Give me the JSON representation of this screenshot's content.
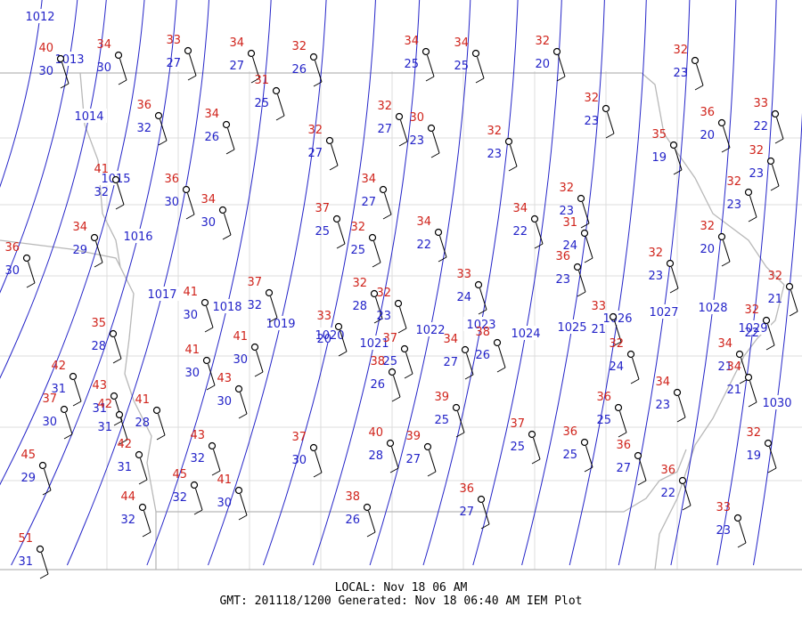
{
  "stations": [
    {
      "temperature": 40,
      "dewpoint": 30
    },
    {
      "temperature": 34,
      "dewpoint": 30
    },
    {
      "temperature": 33,
      "dewpoint": 27
    },
    {
      "temperature": 34,
      "dewpoint": 27
    },
    {
      "temperature": 32,
      "dewpoint": 26
    },
    {
      "temperature": 34,
      "dewpoint": 25
    },
    {
      "temperature": 34,
      "dewpoint": 25
    },
    {
      "temperature": 32,
      "dewpoint": 20
    },
    {
      "temperature": 32,
      "dewpoint": 23
    },
    {
      "temperature": 31,
      "dewpoint": 25
    },
    {
      "temperature": 36,
      "dewpoint": 32
    },
    {
      "temperature": 34,
      "dewpoint": 26
    },
    {
      "temperature": 32,
      "dewpoint": 27
    },
    {
      "temperature": 30,
      "dewpoint": 23
    },
    {
      "temperature": 32,
      "dewpoint": 27
    },
    {
      "temperature": 32,
      "dewpoint": 23
    },
    {
      "temperature": 32,
      "dewpoint": 23
    },
    {
      "temperature": 35,
      "dewpoint": 19
    },
    {
      "temperature": 36,
      "dewpoint": 20
    },
    {
      "temperature": 33,
      "dewpoint": 22
    },
    {
      "temperature": 32,
      "dewpoint": 23
    },
    {
      "temperature": 41,
      "dewpoint": 32
    },
    {
      "temperature": 36,
      "dewpoint": 30
    },
    {
      "temperature": 34,
      "dewpoint": 30
    },
    {
      "temperature": 34,
      "dewpoint": 27
    },
    {
      "temperature": 37,
      "dewpoint": 25
    },
    {
      "temperature": 32,
      "dewpoint": 25
    },
    {
      "temperature": 34,
      "dewpoint": 22
    },
    {
      "temperature": 34,
      "dewpoint": 22
    },
    {
      "temperature": 32,
      "dewpoint": 23
    },
    {
      "temperature": 31,
      "dewpoint": 24
    },
    {
      "temperature": 32,
      "dewpoint": 23
    },
    {
      "temperature": 34,
      "dewpoint": 29
    },
    {
      "temperature": 36,
      "dewpoint": 30
    },
    {
      "temperature": 36,
      "dewpoint": 23
    },
    {
      "temperature": 32,
      "dewpoint": 23
    },
    {
      "temperature": 32,
      "dewpoint": 20
    },
    {
      "temperature": 33,
      "dewpoint": 24
    },
    {
      "temperature": 41,
      "dewpoint": 30
    },
    {
      "temperature": 37,
      "dewpoint": 32
    },
    {
      "temperature": 32,
      "dewpoint": 28
    },
    {
      "temperature": 32,
      "dewpoint": 23
    },
    {
      "temperature": 33,
      "dewpoint": 20
    },
    {
      "temperature": 33,
      "dewpoint": 21
    },
    {
      "temperature": 32,
      "dewpoint": 21
    },
    {
      "temperature": 32,
      "dewpoint": 22
    },
    {
      "temperature": 35,
      "dewpoint": 28
    },
    {
      "temperature": 41,
      "dewpoint": 30
    },
    {
      "temperature": 41,
      "dewpoint": 30
    },
    {
      "temperature": 37,
      "dewpoint": 25
    },
    {
      "temperature": 34,
      "dewpoint": 27
    },
    {
      "temperature": 38,
      "dewpoint": 26
    },
    {
      "temperature": 32,
      "dewpoint": 24
    },
    {
      "temperature": 34,
      "dewpoint": 21
    },
    {
      "temperature": 34,
      "dewpoint": 21
    },
    {
      "temperature": 38,
      "dewpoint": 26
    },
    {
      "temperature": 42,
      "dewpoint": 31
    },
    {
      "temperature": 43,
      "dewpoint": 31
    },
    {
      "temperature": 42,
      "dewpoint": 31
    },
    {
      "temperature": 41,
      "dewpoint": 28
    },
    {
      "temperature": 37,
      "dewpoint": 30
    },
    {
      "temperature": 43,
      "dewpoint": 30
    },
    {
      "temperature": 34,
      "dewpoint": 23
    },
    {
      "temperature": 39,
      "dewpoint": 25
    },
    {
      "temperature": 36,
      "dewpoint": 25
    },
    {
      "temperature": 37,
      "dewpoint": 25
    },
    {
      "temperature": 36,
      "dewpoint": 25
    },
    {
      "temperature": 36,
      "dewpoint": 27
    },
    {
      "temperature": 40,
      "dewpoint": 28
    },
    {
      "temperature": 39,
      "dewpoint": 27
    },
    {
      "temperature": 43,
      "dewpoint": 32
    },
    {
      "temperature": 37,
      "dewpoint": 30
    },
    {
      "temperature": 42,
      "dewpoint": 31
    },
    {
      "temperature": 45,
      "dewpoint": 29
    },
    {
      "temperature": 45,
      "dewpoint": 32
    },
    {
      "temperature": 41,
      "dewpoint": 30
    },
    {
      "temperature": 36,
      "dewpoint": 22
    },
    {
      "temperature": 32,
      "dewpoint": 19
    },
    {
      "temperature": 44,
      "dewpoint": 32
    },
    {
      "temperature": 38,
      "dewpoint": 26
    },
    {
      "temperature": 36,
      "dewpoint": 27
    },
    {
      "temperature": 33,
      "dewpoint": 23
    },
    {
      "temperature": 51,
      "dewpoint": 31
    }
  ],
  "isobars": [
    1012,
    1013,
    1014,
    1015,
    1016,
    1017,
    1018,
    1019,
    1020,
    1021,
    1022,
    1023,
    1024,
    1025,
    1026,
    1027,
    1028,
    1029,
    1030
  ],
  "footer": {
    "local": "LOCAL: Nov 18 06 AM",
    "gmt": "GMT: 201118/1200 Generated: Nov 18 06:40 AM IEM Plot"
  }
}
